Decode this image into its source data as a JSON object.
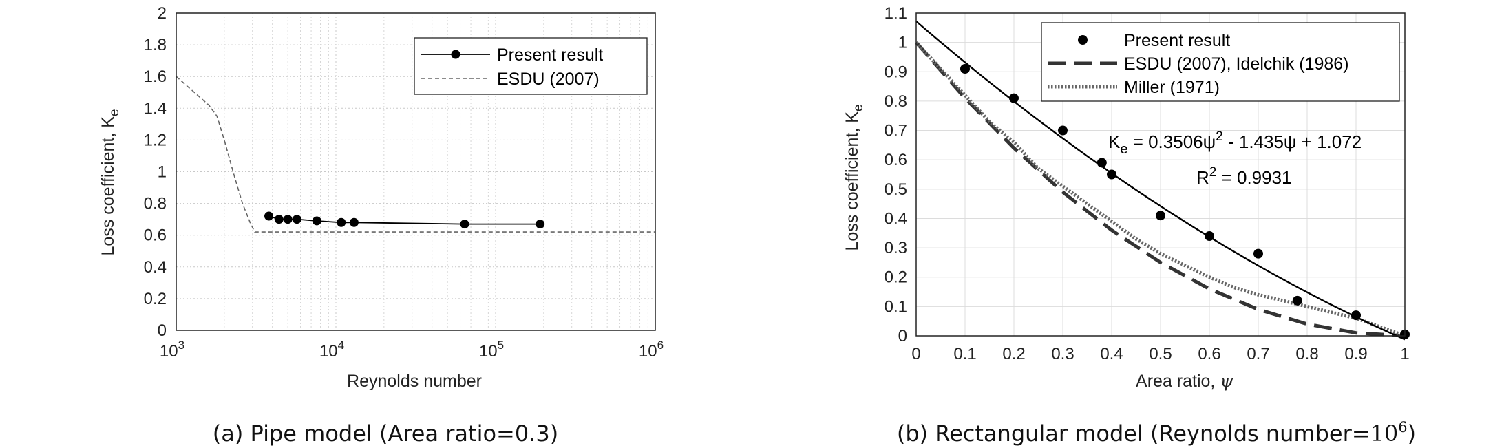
{
  "chart_data": [
    {
      "type": "line",
      "caption": "(a) Pipe model (Area ratio=0.3)",
      "xlabel": "Reynolds number",
      "ylabel": "Loss coefficient, K",
      "ylabel_sub": "e",
      "xscale": "log",
      "xlim": [
        1000,
        1000000
      ],
      "ylim": [
        0,
        2
      ],
      "yticks": [
        "0",
        "0.2",
        "0.4",
        "0.6",
        "0.8",
        "1",
        "1.2",
        "1.4",
        "1.6",
        "1.8",
        "2"
      ],
      "xticks": [
        {
          "base": "10",
          "exp": "3"
        },
        {
          "base": "10",
          "exp": "4"
        },
        {
          "base": "10",
          "exp": "5"
        },
        {
          "base": "10",
          "exp": "6"
        }
      ],
      "grid": true,
      "legend_position": "top-right",
      "series": [
        {
          "name": "Present result",
          "style": "solid-marker",
          "color": "#000000",
          "x": [
            3800,
            4400,
            5000,
            5700,
            7600,
            10800,
            13000,
            64000,
            190000
          ],
          "y": [
            0.72,
            0.7,
            0.7,
            0.7,
            0.69,
            0.68,
            0.68,
            0.67,
            0.67
          ]
        },
        {
          "name": "ESDU (2007)",
          "style": "dashed",
          "color": "#666666",
          "x": [
            1000,
            1300,
            1600,
            1800,
            2000,
            2300,
            2600,
            2900,
            3100,
            4000,
            10000,
            100000,
            1000000
          ],
          "y": [
            1.6,
            1.5,
            1.42,
            1.35,
            1.2,
            0.98,
            0.8,
            0.68,
            0.62,
            0.62,
            0.62,
            0.62,
            0.62
          ]
        }
      ]
    },
    {
      "type": "line",
      "caption": "(b) Rectangular model (Reynolds number=",
      "caption_math": "10",
      "caption_math_exp": "6",
      "caption_close": ")",
      "xlabel": "Area ratio, ",
      "xlabel_symbol": "ψ",
      "ylabel": "Loss coefficient, K",
      "ylabel_sub": "e",
      "xlim": [
        0,
        1
      ],
      "ylim": [
        0,
        1.1
      ],
      "xticks": [
        "0",
        "0.1",
        "0.2",
        "0.3",
        "0.4",
        "0.5",
        "0.6",
        "0.7",
        "0.8",
        "0.9",
        "1"
      ],
      "yticks": [
        "0",
        "0.1",
        "0.2",
        "0.3",
        "0.4",
        "0.5",
        "0.6",
        "0.7",
        "0.8",
        "0.9",
        "1",
        "1.1"
      ],
      "grid": true,
      "legend_position": "top-right",
      "annotation": {
        "equation": "K",
        "equation_sub": "e",
        "equation_rest": " = 0.3506ψ",
        "equation_sup": "2",
        "equation_tail": " - 1.435ψ + 1.072",
        "r2": "R",
        "r2_sup": "2",
        "r2_rest": " = 0.9931"
      },
      "fit": {
        "a": 0.3506,
        "b": -1.435,
        "c": 1.072
      },
      "series": [
        {
          "name": "Present result",
          "style": "marker",
          "color": "#000000",
          "x": [
            0.1,
            0.2,
            0.3,
            0.38,
            0.4,
            0.5,
            0.6,
            0.7,
            0.78,
            0.9,
            1.0
          ],
          "y": [
            0.91,
            0.81,
            0.7,
            0.59,
            0.55,
            0.41,
            0.34,
            0.28,
            0.12,
            0.07,
            0.005
          ]
        },
        {
          "name": "ESDU (2007), Idelchik (1986)",
          "style": "long-dashed",
          "color": "#333333",
          "x": [
            0,
            0.1,
            0.2,
            0.3,
            0.4,
            0.5,
            0.6,
            0.7,
            0.8,
            0.9,
            1.0
          ],
          "y": [
            1.0,
            0.81,
            0.64,
            0.49,
            0.36,
            0.25,
            0.16,
            0.09,
            0.04,
            0.01,
            0.0
          ]
        },
        {
          "name": "Miller (1971)",
          "style": "dotted",
          "color": "#666666",
          "x": [
            0,
            0.05,
            0.1,
            0.15,
            0.2,
            0.25,
            0.3,
            0.35,
            0.4,
            0.45,
            0.5,
            0.55,
            0.6,
            0.65,
            0.7,
            0.75,
            0.8,
            0.85,
            0.9,
            0.95,
            1.0
          ],
          "y": [
            1.0,
            0.91,
            0.82,
            0.73,
            0.66,
            0.57,
            0.51,
            0.45,
            0.39,
            0.33,
            0.28,
            0.24,
            0.2,
            0.165,
            0.14,
            0.12,
            0.1,
            0.08,
            0.06,
            0.03,
            0.0
          ]
        },
        {
          "name": "",
          "style": "solid",
          "color": "#000000",
          "kind": "fit"
        }
      ]
    }
  ]
}
